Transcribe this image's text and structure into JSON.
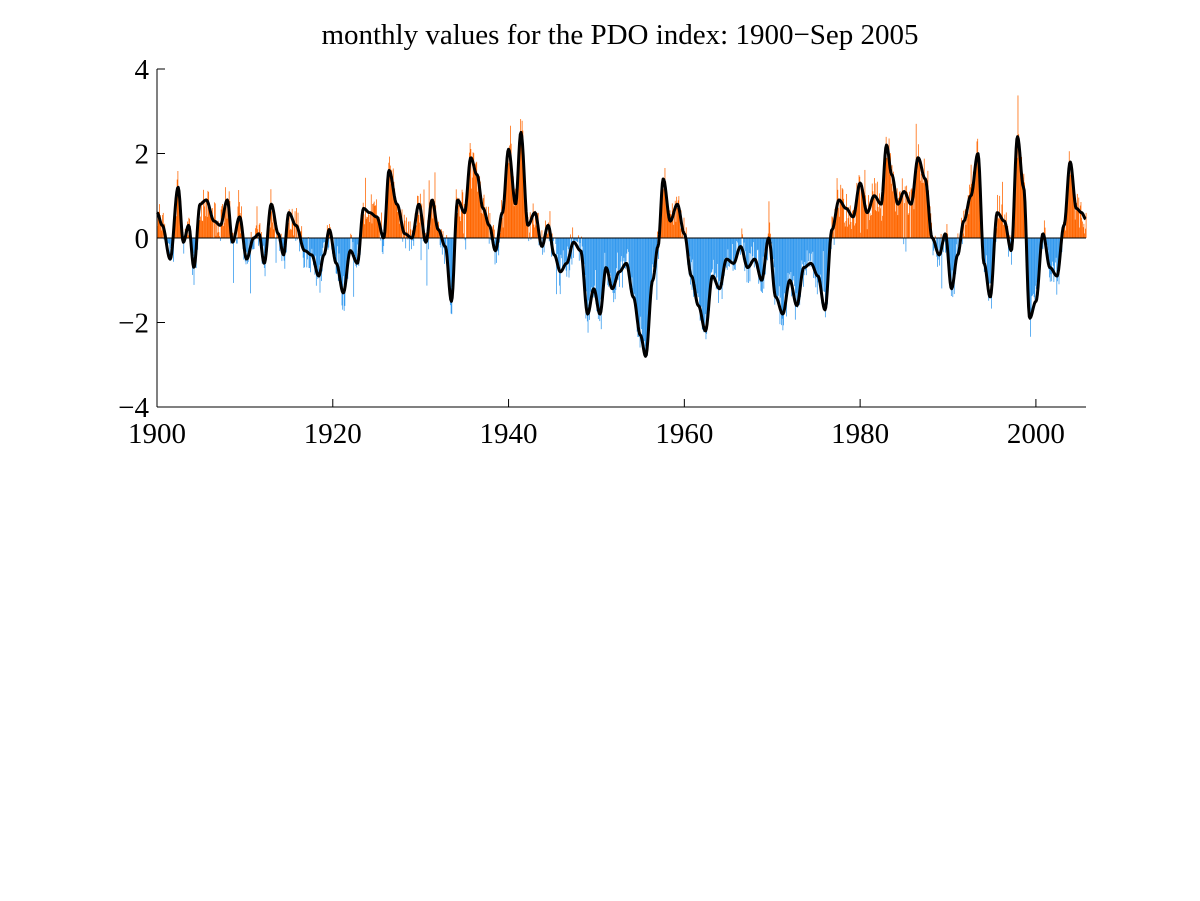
{
  "chart_data": {
    "type": "bar",
    "title": "monthly values for the PDO index: 1900−Sep 2005",
    "xlabel": "",
    "ylabel": "",
    "xlim": [
      1900,
      2005.7
    ],
    "ylim": [
      -4,
      4
    ],
    "x_ticks": [
      1900,
      1920,
      1940,
      1960,
      1980,
      2000
    ],
    "x_tick_labels": [
      "1900",
      "1920",
      "1940",
      "1960",
      "1980",
      "2000"
    ],
    "y_ticks": [
      4,
      2,
      0,
      -2,
      -4
    ],
    "y_tick_labels": [
      "4",
      "2",
      "0",
      "−2",
      "−4"
    ],
    "grid": false,
    "legend": "none",
    "colors": {
      "positive": "#ff6600",
      "negative": "#3399ee",
      "smoothed": "#000000"
    },
    "sampling": "monthly, Jan 1900 – Sep 2005",
    "anchors": {
      "x": [
        1900.0,
        1900.6,
        1901.5,
        1902.4,
        1903.0,
        1903.6,
        1904.2,
        1904.9,
        1905.6,
        1906.5,
        1907.2,
        1908.0,
        1908.6,
        1909.4,
        1910.2,
        1911.0,
        1911.6,
        1912.2,
        1913.0,
        1913.8,
        1914.4,
        1915.0,
        1915.8,
        1916.8,
        1917.6,
        1918.4,
        1919.0,
        1919.6,
        1920.4,
        1921.2,
        1922.0,
        1922.8,
        1923.5,
        1924.2,
        1925.0,
        1925.8,
        1926.4,
        1927.3,
        1928.2,
        1929.0,
        1929.8,
        1930.6,
        1931.3,
        1932.0,
        1932.8,
        1933.5,
        1934.2,
        1935.0,
        1935.7,
        1936.4,
        1937.1,
        1937.8,
        1938.5,
        1939.3,
        1940.0,
        1940.8,
        1941.4,
        1942.2,
        1943.0,
        1943.8,
        1944.5,
        1945.2,
        1945.9,
        1946.6,
        1947.4,
        1948.2,
        1949.0,
        1949.7,
        1950.4,
        1951.1,
        1951.8,
        1952.6,
        1953.4,
        1954.2,
        1955.0,
        1955.6,
        1956.4,
        1957.0,
        1957.6,
        1958.4,
        1959.2,
        1960.0,
        1960.8,
        1961.6,
        1962.4,
        1963.2,
        1964.0,
        1964.8,
        1965.6,
        1966.4,
        1967.2,
        1968.0,
        1968.8,
        1969.6,
        1970.4,
        1971.2,
        1972.0,
        1972.8,
        1973.6,
        1974.4,
        1975.2,
        1976.0,
        1976.8,
        1977.6,
        1978.4,
        1979.2,
        1980.0,
        1980.8,
        1981.6,
        1982.4,
        1983.0,
        1983.6,
        1984.3,
        1985.0,
        1985.8,
        1986.6,
        1987.4,
        1988.2,
        1989.0,
        1989.7,
        1990.4,
        1991.1,
        1991.8,
        1992.6,
        1993.4,
        1994.1,
        1994.8,
        1995.6,
        1996.4,
        1997.2,
        1997.9,
        1998.6,
        1999.3,
        2000.0,
        2000.8,
        2001.6,
        2002.4,
        2003.2,
        2003.9,
        2004.6,
        2005.2,
        2005.67
      ],
      "y": [
        0.6,
        0.3,
        -0.5,
        1.2,
        -0.1,
        0.3,
        -0.7,
        0.8,
        0.9,
        0.4,
        0.3,
        0.9,
        -0.1,
        0.5,
        -0.5,
        0.0,
        0.1,
        -0.6,
        0.8,
        0.1,
        -0.4,
        0.6,
        0.3,
        -0.3,
        -0.4,
        -0.9,
        -0.4,
        0.2,
        -0.6,
        -1.3,
        -0.3,
        -0.6,
        0.7,
        0.6,
        0.5,
        0.0,
        1.6,
        0.8,
        0.1,
        0.0,
        0.8,
        -0.1,
        0.9,
        0.2,
        -0.2,
        -1.5,
        0.9,
        0.6,
        1.9,
        1.5,
        0.7,
        0.3,
        -0.3,
        0.6,
        2.1,
        0.8,
        2.5,
        0.3,
        0.6,
        -0.2,
        0.3,
        -0.4,
        -0.8,
        -0.6,
        -0.1,
        -0.3,
        -1.8,
        -1.2,
        -1.8,
        -0.7,
        -1.2,
        -0.8,
        -0.6,
        -1.4,
        -2.3,
        -2.8,
        -1.0,
        -0.2,
        1.4,
        0.4,
        0.8,
        0.1,
        -0.9,
        -1.6,
        -2.2,
        -0.9,
        -1.2,
        -0.5,
        -0.6,
        -0.2,
        -0.7,
        -0.5,
        -1.0,
        0.0,
        -1.4,
        -1.8,
        -1.0,
        -1.6,
        -0.7,
        -0.6,
        -0.9,
        -1.7,
        0.2,
        0.9,
        0.7,
        0.5,
        1.3,
        0.6,
        1.0,
        0.8,
        2.2,
        1.5,
        0.8,
        1.1,
        0.8,
        1.9,
        1.4,
        0.0,
        -0.4,
        0.1,
        -1.2,
        -0.4,
        0.4,
        1.0,
        2.0,
        -0.6,
        -1.4,
        0.6,
        0.4,
        -0.3,
        2.4,
        1.2,
        -1.9,
        -1.5,
        0.1,
        -0.7,
        -0.9,
        0.3,
        1.8,
        0.7,
        0.6,
        0.45
      ]
    }
  }
}
